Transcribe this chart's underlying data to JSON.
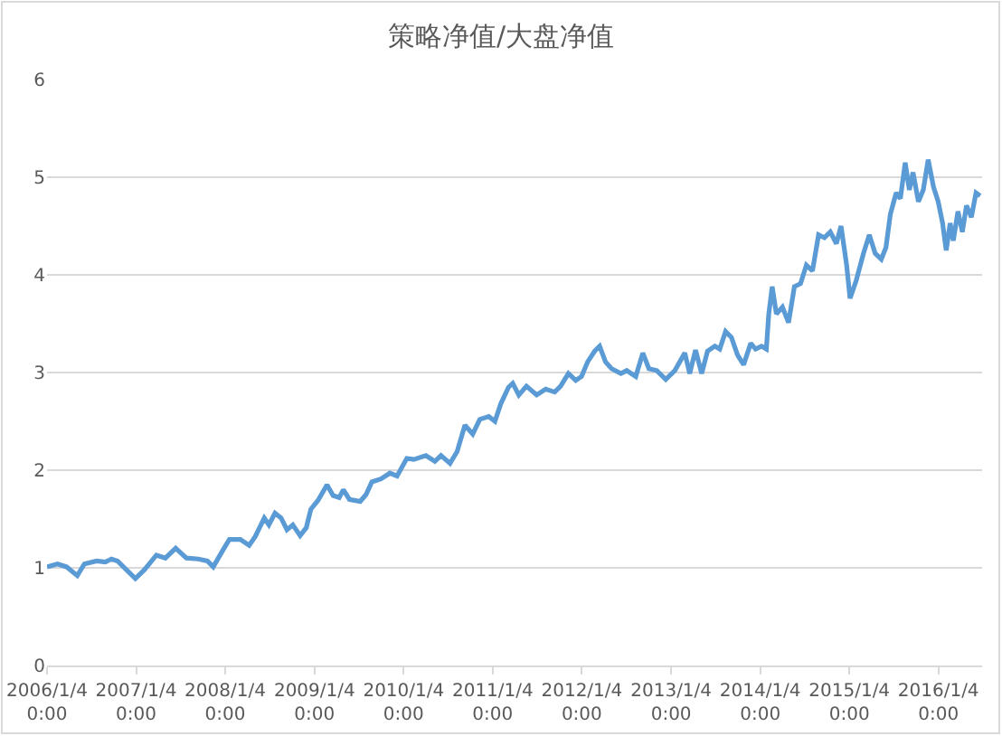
{
  "chart_data": {
    "type": "line",
    "title": "策略净值/大盘净值",
    "x": [
      "2006-01-04",
      "2006-02-16",
      "2006-03-25",
      "2006-05-08",
      "2006-06-06",
      "2006-07-26",
      "2006-08-31",
      "2006-09-25",
      "2006-10-20",
      "2006-11-25",
      "2007-01-01",
      "2007-02-07",
      "2007-03-28",
      "2007-05-04",
      "2007-06-15",
      "2007-07-29",
      "2007-09-16",
      "2007-10-23",
      "2007-11-16",
      "2007-12-23",
      "2008-01-21",
      "2008-03-06",
      "2008-04-11",
      "2008-05-06",
      "2008-06-12",
      "2008-07-01",
      "2008-07-26",
      "2008-08-20",
      "2008-09-13",
      "2008-10-07",
      "2008-11-06",
      "2008-12-01",
      "2008-12-20",
      "2009-01-18",
      "2009-02-24",
      "2009-03-21",
      "2009-04-15",
      "2009-05-02",
      "2009-05-27",
      "2009-07-10",
      "2009-08-03",
      "2009-08-27",
      "2009-10-03",
      "2009-11-09",
      "2009-12-08",
      "2010-01-17",
      "2010-02-15",
      "2010-04-05",
      "2010-05-12",
      "2010-06-06",
      "2010-07-13",
      "2010-08-11",
      "2010-09-12",
      "2010-10-14",
      "2010-11-12",
      "2010-12-19",
      "2011-01-13",
      "2011-02-06",
      "2011-03-10",
      "2011-03-27",
      "2011-04-21",
      "2011-05-22",
      "2011-07-03",
      "2011-08-09",
      "2011-09-15",
      "2011-10-09",
      "2011-11-10",
      "2011-12-10",
      "2012-01-03",
      "2012-01-28",
      "2012-02-26",
      "2012-03-17",
      "2012-04-10",
      "2012-05-05",
      "2012-06-12",
      "2012-07-06",
      "2012-08-12",
      "2012-09-10",
      "2012-10-05",
      "2012-11-06",
      "2012-12-13",
      "2013-01-19",
      "2013-03-01",
      "2013-03-21",
      "2013-04-14",
      "2013-05-09",
      "2013-06-02",
      "2013-07-02",
      "2013-07-22",
      "2013-08-15",
      "2013-09-08",
      "2013-10-03",
      "2013-10-28",
      "2013-11-26",
      "2013-12-16",
      "2014-01-09",
      "2014-01-29",
      "2014-02-08",
      "2014-02-22",
      "2014-03-11",
      "2014-04-05",
      "2014-04-30",
      "2014-05-24",
      "2014-06-18",
      "2014-07-12",
      "2014-08-06",
      "2014-08-31",
      "2014-09-24",
      "2014-10-18",
      "2014-11-12",
      "2014-12-01",
      "2014-12-24",
      "2015-01-07",
      "2015-02-01",
      "2015-03-03",
      "2015-03-27",
      "2015-04-20",
      "2015-05-15",
      "2015-06-03",
      "2015-06-21",
      "2015-07-15",
      "2015-08-01",
      "2015-08-21",
      "2015-09-07",
      "2015-09-22",
      "2015-10-14",
      "2015-11-03",
      "2015-11-23",
      "2015-12-15",
      "2016-01-03",
      "2016-01-21",
      "2016-02-05",
      "2016-02-21",
      "2016-03-05",
      "2016-03-24",
      "2016-04-11",
      "2016-04-28",
      "2016-05-18",
      "2016-06-06",
      "2016-06-23"
    ],
    "series": [
      {
        "color": "#5b9bd5",
        "values": [
          1.01,
          1.04,
          1.01,
          0.92,
          1.04,
          1.07,
          1.06,
          1.09,
          1.07,
          0.98,
          0.89,
          0.98,
          1.13,
          1.1,
          1.2,
          1.1,
          1.09,
          1.07,
          1.01,
          1.17,
          1.29,
          1.29,
          1.23,
          1.32,
          1.51,
          1.44,
          1.56,
          1.51,
          1.39,
          1.44,
          1.33,
          1.41,
          1.6,
          1.69,
          1.85,
          1.74,
          1.72,
          1.8,
          1.7,
          1.68,
          1.75,
          1.88,
          1.91,
          1.97,
          1.94,
          2.12,
          2.11,
          2.15,
          2.09,
          2.15,
          2.07,
          2.19,
          2.46,
          2.37,
          2.52,
          2.55,
          2.5,
          2.68,
          2.85,
          2.89,
          2.77,
          2.86,
          2.77,
          2.83,
          2.8,
          2.86,
          2.99,
          2.92,
          2.96,
          3.11,
          3.22,
          3.27,
          3.11,
          3.04,
          2.99,
          3.02,
          2.96,
          3.2,
          3.04,
          3.02,
          2.93,
          3.02,
          3.2,
          2.99,
          3.23,
          2.99,
          3.22,
          3.27,
          3.24,
          3.42,
          3.36,
          3.18,
          3.08,
          3.3,
          3.24,
          3.27,
          3.24,
          3.6,
          3.88,
          3.6,
          3.67,
          3.51,
          3.88,
          3.91,
          4.1,
          4.04,
          4.41,
          4.38,
          4.44,
          4.32,
          4.5,
          4.1,
          3.76,
          3.94,
          4.22,
          4.41,
          4.22,
          4.16,
          4.28,
          4.62,
          4.84,
          4.78,
          5.15,
          4.87,
          5.05,
          4.75,
          4.87,
          5.18,
          4.9,
          4.75,
          4.53,
          4.25,
          4.53,
          4.35,
          4.65,
          4.44,
          4.71,
          4.59,
          4.84,
          4.81
        ]
      }
    ],
    "xlim": [
      "2006-01-04",
      "2016-07-01"
    ],
    "xticks": [
      {
        "value": "2006-01-04",
        "label": "2006/1/4\n0:00"
      },
      {
        "value": "2007-01-04",
        "label": "2007/1/4\n0:00"
      },
      {
        "value": "2008-01-04",
        "label": "2008/1/4\n0:00"
      },
      {
        "value": "2009-01-04",
        "label": "2009/1/4\n0:00"
      },
      {
        "value": "2010-01-04",
        "label": "2010/1/4\n0:00"
      },
      {
        "value": "2011-01-04",
        "label": "2011/1/4\n0:00"
      },
      {
        "value": "2012-01-04",
        "label": "2012/1/4\n0:00"
      },
      {
        "value": "2013-01-04",
        "label": "2013/1/4\n0:00"
      },
      {
        "value": "2014-01-04",
        "label": "2014/1/4\n0:00"
      },
      {
        "value": "2015-01-04",
        "label": "2015/1/4\n0:00"
      },
      {
        "value": "2016-01-04",
        "label": "2016/1/4\n0:00"
      }
    ],
    "ylim": [
      0,
      6
    ],
    "yticks": [
      0,
      1,
      2,
      3,
      4,
      5,
      6
    ],
    "grid": "y",
    "marker": "none",
    "line_style": "solid"
  }
}
